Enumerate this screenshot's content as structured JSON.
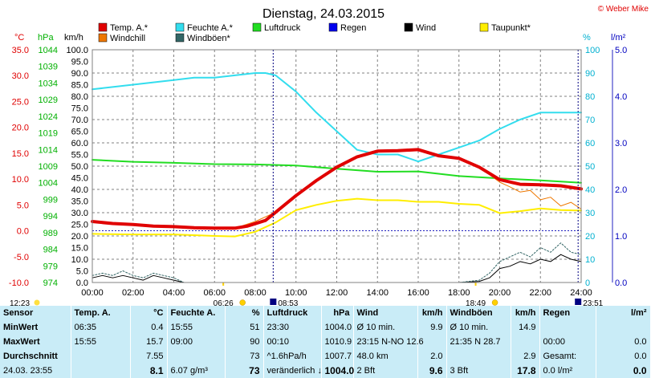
{
  "chart_data": {
    "type": "line",
    "title": "Dienstag, 24.03.2015",
    "credit": "© Weber Mike",
    "x_ticks": [
      "00:00",
      "02:00",
      "04:00",
      "06:00",
      "08:00",
      "10:00",
      "12:00",
      "14:00",
      "16:00",
      "18:00",
      "20:00",
      "22:00",
      "24:00"
    ],
    "x_range_hours": [
      0,
      24
    ],
    "axes": {
      "temp": {
        "label": "°C",
        "ticks": [
          "35.0",
          "30.0",
          "25.0",
          "20.0",
          "15.0",
          "10.0",
          "5.0",
          "0.0",
          "-5.0",
          "-10.0"
        ],
        "range": [
          -10,
          35
        ],
        "color": "#e00000"
      },
      "pressure": {
        "label": "hPa",
        "ticks": [
          "1044",
          "1039",
          "1034",
          "1029",
          "1024",
          "1019",
          "1014",
          "1009",
          "1004",
          "999",
          "994",
          "989",
          "984",
          "979",
          "974"
        ],
        "range": [
          974,
          1044
        ],
        "color": "#00b000"
      },
      "wind": {
        "label": "km/h",
        "ticks": [
          "100.0",
          "95.0",
          "90.0",
          "85.0",
          "80.0",
          "75.0",
          "70.0",
          "65.0",
          "60.0",
          "55.0",
          "50.0",
          "45.0",
          "40.0",
          "35.0",
          "30.0",
          "25.0",
          "20.0",
          "15.0",
          "10.0",
          "5.0",
          "0.0"
        ],
        "range": [
          0,
          100
        ],
        "color": "#000000"
      },
      "humidity": {
        "label": "%",
        "ticks": [
          "100",
          "90",
          "80",
          "70",
          "60",
          "50",
          "40",
          "30",
          "20",
          "10",
          "0"
        ],
        "range": [
          0,
          100
        ],
        "color": "#00b0d0"
      },
      "rain": {
        "label": "l/m²",
        "ticks": [
          "5.0",
          "4.0",
          "3.0",
          "2.0",
          "1.0",
          "0.0"
        ],
        "range": [
          0,
          5
        ],
        "color": "#0000c0"
      }
    },
    "legend": [
      {
        "name": "Temp. A.*",
        "color": "#e00000"
      },
      {
        "name": "Feuchte A.*",
        "color": "#33ddee"
      },
      {
        "name": "Luftdruck",
        "color": "#22dd22"
      },
      {
        "name": "Regen",
        "color": "#0000ee"
      },
      {
        "name": "Wind",
        "color": "#000000"
      },
      {
        "name": "Taupunkt*",
        "color": "#ffee00"
      },
      {
        "name": "Windchill",
        "color": "#ee7700"
      },
      {
        "name": "Windböen*",
        "color": "#336666"
      }
    ],
    "series": [
      {
        "name": "Temp. A.*",
        "axis": "temp",
        "color": "#e00000",
        "width": 4,
        "x": [
          0,
          1,
          2,
          3,
          4,
          5,
          6,
          7,
          7.6,
          8.5,
          9,
          10,
          11,
          12,
          13,
          14,
          15,
          16,
          17,
          18,
          19,
          20,
          21,
          22,
          23,
          24
        ],
        "y": [
          1.8,
          1.4,
          1.2,
          0.9,
          0.8,
          0.6,
          0.5,
          0.5,
          0.9,
          2.0,
          3.6,
          6.8,
          9.7,
          12.3,
          14.3,
          15.4,
          15.5,
          15.7,
          14.5,
          14.0,
          12.3,
          9.9,
          9.0,
          8.9,
          8.7,
          8.1
        ]
      },
      {
        "name": "Windchill",
        "axis": "temp",
        "color": "#ee7700",
        "width": 1,
        "x": [
          0,
          2,
          4,
          6,
          7,
          8,
          9,
          10,
          11,
          12,
          13,
          14,
          15,
          16,
          17,
          18,
          19,
          20,
          20.5,
          21,
          21.5,
          22,
          22.5,
          23,
          23.5,
          24
        ],
        "y": [
          1.8,
          1.2,
          0.8,
          0.5,
          0.5,
          1.8,
          3.6,
          6.8,
          9.8,
          12.4,
          14.5,
          15.4,
          15.5,
          15.7,
          14.5,
          14.0,
          12.3,
          9.4,
          8.5,
          7.5,
          7.8,
          6.0,
          6.5,
          4.8,
          5.5,
          4.2
        ]
      },
      {
        "name": "Feuchte A.*",
        "axis": "humidity",
        "color": "#33ddee",
        "width": 2,
        "x": [
          0,
          1,
          2,
          3,
          4,
          5,
          6,
          7,
          8,
          8.5,
          9,
          10,
          11,
          12,
          13,
          14,
          15,
          16,
          17,
          18,
          19,
          20,
          21,
          22,
          23,
          24
        ],
        "y": [
          83,
          84,
          85,
          86,
          87,
          88,
          88,
          89,
          90,
          90,
          89,
          82,
          73,
          65,
          57,
          55,
          55,
          52,
          55,
          58,
          61,
          66,
          70,
          73,
          73,
          73
        ]
      },
      {
        "name": "Taupunkt*",
        "axis": "temp",
        "color": "#ffee00",
        "width": 2,
        "x": [
          0,
          2,
          4,
          6,
          7,
          8,
          9,
          10,
          11,
          12,
          13,
          14,
          15,
          16,
          17,
          18,
          19,
          20,
          21,
          22,
          23,
          24
        ],
        "y": [
          -0.6,
          -0.7,
          -0.7,
          -1.0,
          -1.1,
          -0.2,
          1.6,
          4.0,
          5.0,
          5.8,
          6.2,
          5.9,
          5.9,
          5.6,
          5.6,
          5.2,
          5.0,
          3.4,
          3.8,
          4.3,
          4.0,
          3.9
        ]
      },
      {
        "name": "Luftdruck",
        "axis": "pressure",
        "color": "#22dd22",
        "width": 2,
        "x": [
          0,
          2,
          4,
          6,
          8,
          10,
          12,
          14,
          16,
          18,
          20,
          22,
          24
        ],
        "y": [
          1010.9,
          1010.3,
          1010.0,
          1009.6,
          1009.5,
          1009.2,
          1008.2,
          1007.3,
          1007.4,
          1006.0,
          1005.3,
          1004.7,
          1004.0
        ]
      },
      {
        "name": "Wind",
        "axis": "wind",
        "color": "#000000",
        "width": 1,
        "x": [
          0,
          0.5,
          1,
          1.5,
          2,
          2.5,
          3,
          3.5,
          4,
          4.5,
          5,
          6,
          7,
          8,
          9,
          10,
          11,
          12,
          13,
          14,
          15,
          16,
          17,
          18,
          19,
          19.5,
          20,
          20.5,
          21,
          21.5,
          22,
          22.5,
          23,
          23.5,
          24
        ],
        "y": [
          2,
          3,
          2,
          3,
          2,
          1,
          3,
          2,
          1,
          0,
          0,
          0,
          0,
          0,
          0,
          0,
          0,
          0,
          0,
          0,
          0,
          0,
          0,
          0,
          0.5,
          2,
          6,
          7,
          9,
          8,
          10,
          9,
          12,
          10,
          9
        ]
      },
      {
        "name": "Windböen*",
        "axis": "wind",
        "color": "#336666",
        "width": 1,
        "dash": "2,2",
        "x": [
          0,
          0.5,
          1,
          1.5,
          2,
          2.5,
          3,
          3.5,
          4,
          4.5,
          5,
          6,
          7,
          8,
          9,
          10,
          11,
          12,
          13,
          14,
          15,
          16,
          17,
          18,
          19,
          19.5,
          20,
          20.5,
          21,
          21.5,
          22,
          22.5,
          23,
          23.5,
          24
        ],
        "y": [
          3,
          4,
          3,
          5,
          3,
          2,
          4,
          3,
          2,
          0,
          0,
          0,
          0,
          0,
          0,
          0,
          0,
          0,
          0,
          0,
          0,
          0,
          0,
          0,
          1,
          4,
          9,
          11,
          13,
          11,
          15,
          13,
          17,
          13,
          12
        ]
      }
    ],
    "zero_line_value": 0,
    "bottom_marks": [
      {
        "time": "12:23",
        "label": "12:23",
        "hour": 0,
        "type": "moon"
      },
      {
        "time": "06:26",
        "label": "06:26",
        "hour": 6.43,
        "type": "sunrise"
      },
      {
        "time": "08:53",
        "label": "08:53",
        "hour": 8.88,
        "type": "moonrise"
      },
      {
        "time": "18:49",
        "label": "18:49",
        "hour": 18.82,
        "type": "sunset"
      },
      {
        "time": "23:51",
        "label": "23:51",
        "hour": 23.85,
        "type": "moonset"
      }
    ]
  },
  "stats": {
    "headers": [
      {
        "label": "Sensor",
        "align": "left"
      },
      {
        "label": "Temp. A.",
        "align": "left"
      },
      {
        "label": "°C",
        "align": "right"
      },
      {
        "label": "Feuchte A.",
        "align": "left"
      },
      {
        "label": "%",
        "align": "right"
      },
      {
        "label": "Luftdruck",
        "align": "left"
      },
      {
        "label": "hPa",
        "align": "right"
      },
      {
        "label": "Wind",
        "align": "left"
      },
      {
        "label": "km/h",
        "align": "right"
      },
      {
        "label": "Windböen",
        "align": "left"
      },
      {
        "label": "km/h",
        "align": "right"
      },
      {
        "label": "Regen",
        "align": "left"
      },
      {
        "label": "l/m²",
        "align": "right"
      }
    ],
    "rows": [
      {
        "label": "MinWert",
        "cells": [
          "06:35",
          "0.4",
          "15:55",
          "51",
          "23:30",
          "1004.0",
          "Ø 10 min.",
          "9.9",
          "Ø 10 min.",
          "14.9",
          "",
          ""
        ]
      },
      {
        "label": "MaxWert",
        "cells": [
          "15:55",
          "15.7",
          "09:00",
          "90",
          "00:10",
          "1010.9",
          "23:15    N-NO 12.6",
          "",
          "21:35       N 28.7",
          "",
          "00:00",
          "0.0"
        ]
      },
      {
        "label": "Durchschnitt",
        "cells": [
          "",
          "7.55",
          "",
          "73",
          "^1.6hPa/h",
          "1007.7",
          "48.0 km",
          "2.0",
          "",
          "2.9",
          "Gesamt:",
          "0.0"
        ]
      },
      {
        "label": "24.03. 23:55",
        "cells": [
          "",
          "8.1",
          "6.07 g/m³",
          "73",
          "veränderlich ↓",
          "1004.0",
          "2 Bft",
          "9.6",
          "3 Bft",
          "17.8",
          "0.0 l/m²",
          "0.0"
        ]
      }
    ]
  }
}
